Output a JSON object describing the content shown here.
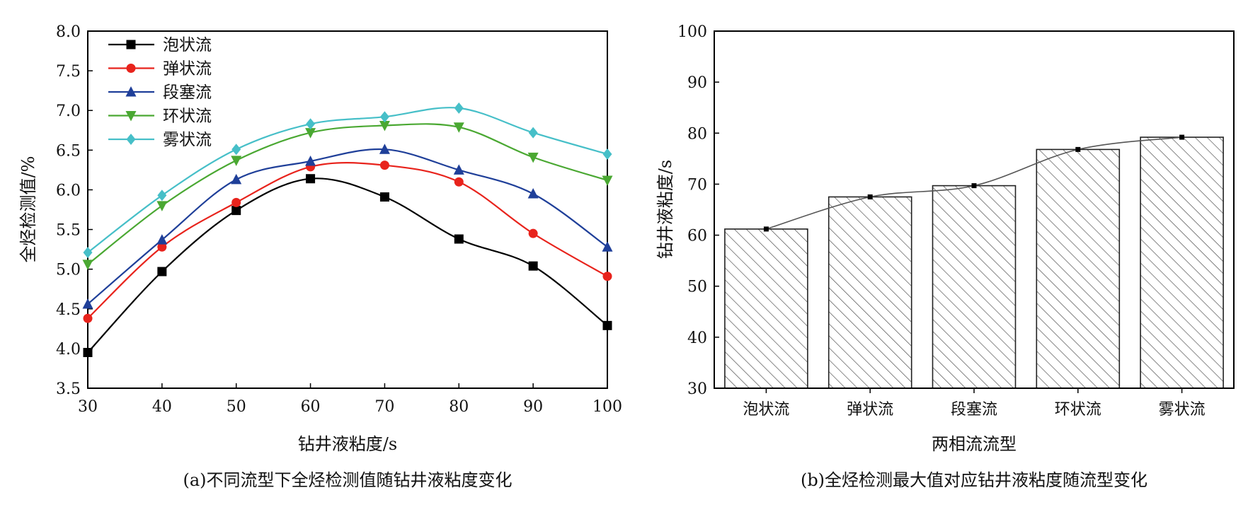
{
  "chart_data": [
    {
      "id": "a",
      "type": "line",
      "caption": "(a)不同流型下全烃检测值随钻井液粘度变化",
      "xlabel": "钻井液粘度/s",
      "ylabel": "全烃检测值/%",
      "xlim": [
        30,
        100
      ],
      "ylim": [
        3.5,
        8.0
      ],
      "xticks": [
        30,
        40,
        50,
        60,
        70,
        80,
        90,
        100
      ],
      "yticks": [
        "3.5",
        "4.0",
        "4.5",
        "5.0",
        "5.5",
        "6.0",
        "6.5",
        "7.0",
        "7.5",
        "8.0"
      ],
      "legend_position": "top-left",
      "x": [
        30,
        40,
        50,
        60,
        70,
        80,
        90,
        100
      ],
      "series": [
        {
          "name": "泡状流",
          "marker": "square",
          "color": "#000000",
          "values": [
            3.95,
            4.97,
            5.74,
            6.14,
            5.91,
            5.38,
            5.04,
            4.29
          ]
        },
        {
          "name": "弹状流",
          "marker": "circle",
          "color": "#e8231c",
          "values": [
            4.38,
            5.28,
            5.84,
            6.29,
            6.31,
            6.1,
            5.45,
            4.91
          ]
        },
        {
          "name": "段塞流",
          "marker": "triangle-up",
          "color": "#1f3f99",
          "values": [
            4.56,
            5.37,
            6.13,
            6.36,
            6.51,
            6.25,
            5.95,
            5.28
          ]
        },
        {
          "name": "环状流",
          "marker": "triangle-down",
          "color": "#4aa832",
          "values": [
            5.06,
            5.8,
            6.37,
            6.72,
            6.81,
            6.79,
            6.41,
            6.12
          ]
        },
        {
          "name": "雾状流",
          "marker": "diamond",
          "color": "#46bfc8",
          "values": [
            5.21,
            5.93,
            6.51,
            6.83,
            6.92,
            7.03,
            6.72,
            6.45
          ]
        }
      ]
    },
    {
      "id": "b",
      "type": "bar",
      "caption": "(b)全烃检测最大值对应钻井液粘度随流型变化",
      "xlabel": "两相流流型",
      "ylabel": "钻井液粘度/s",
      "ylim": [
        30,
        100
      ],
      "yticks": [
        "30",
        "40",
        "50",
        "60",
        "70",
        "80",
        "90",
        "100"
      ],
      "categories": [
        "泡状流",
        "弹状流",
        "段塞流",
        "环状流",
        "雾状流"
      ],
      "values": [
        61.2,
        67.5,
        69.7,
        76.8,
        79.2
      ],
      "bar_fill": "hatched",
      "overlay_line": true
    }
  ]
}
